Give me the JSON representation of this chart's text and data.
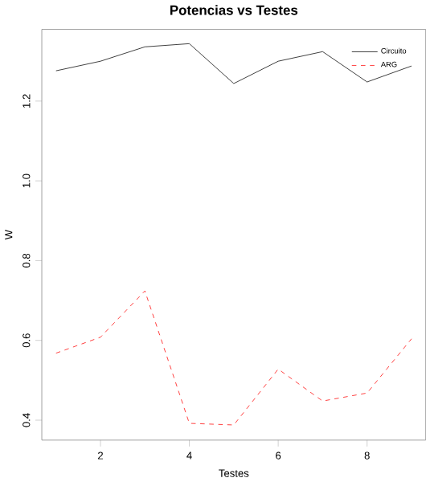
{
  "chart_data": {
    "type": "line",
    "title": "Potencias vs Testes",
    "xlabel": "Testes",
    "ylabel": "W",
    "x": [
      1,
      2,
      3,
      4,
      5,
      6,
      7,
      8,
      9
    ],
    "series": [
      {
        "name": "Circuito",
        "color": "#000000",
        "line_style": "solid",
        "values": [
          1.276,
          1.3,
          1.336,
          1.344,
          1.244,
          1.3,
          1.324,
          1.248,
          1.288
        ]
      },
      {
        "name": "ARG",
        "color": "#ff0000",
        "line_style": "dashed",
        "values": [
          0.568,
          0.608,
          0.724,
          0.392,
          0.388,
          0.528,
          0.448,
          0.468,
          0.604
        ]
      }
    ],
    "xlim": [
      0.68,
      9.32
    ],
    "ylim": [
      0.35,
      1.38
    ],
    "xticks": [
      2,
      4,
      6,
      8
    ],
    "yticks": [
      0.4,
      0.6,
      0.8,
      {
        "value": 1,
        "label": "1.0"
      },
      1.2
    ],
    "legend": "top right",
    "grid": false
  }
}
